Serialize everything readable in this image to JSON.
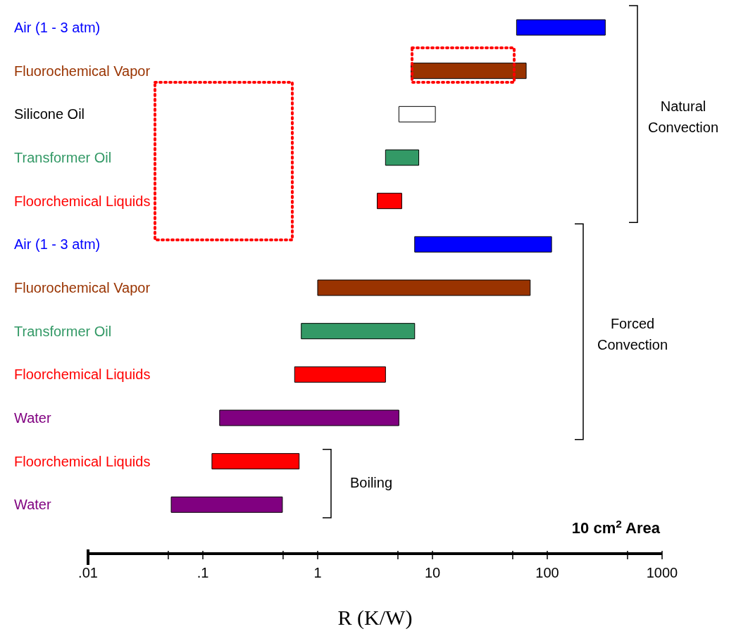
{
  "chart_data": {
    "type": "bar",
    "orientation": "horizontal",
    "xlabel": "R (K/W)",
    "categories": [
      "Air (1 - 3 atm)",
      "Fluorochemical Vapor",
      "Silicone Oil",
      "Transformer Oil",
      "Floorchemical Liquids",
      "Air (1 - 3 atm)",
      "Fluorochemical Vapor",
      "Transformer Oil",
      "Floorchemical Liquids",
      "Water",
      "Floorchemical Liquids",
      "Water"
    ],
    "base": [
      54,
      6.5,
      5.1,
      3.9,
      3.3,
      7,
      1,
      0.72,
      0.63,
      0.14,
      0.12,
      0.053
    ],
    "values": [
      266,
      59,
      5.5,
      3.7,
      2.1,
      102,
      70,
      6.28,
      3.27,
      4.96,
      0.57,
      0.44
    ],
    "colors": [
      "#0000ff",
      "#993300",
      "#ffffff",
      "#339966",
      "#ff0000",
      "#0000ff",
      "#993300",
      "#339966",
      "#ff0000",
      "#800080",
      "#ff0000",
      "#800080"
    ],
    "log": "x",
    "xlim": [
      0.01,
      1000
    ],
    "xticks": [
      {
        "value": 0.01,
        "label": ".01"
      },
      {
        "value": 0.05,
        "label": null
      },
      {
        "value": 0.1,
        "label": ".1"
      },
      {
        "value": 0.5,
        "label": null
      },
      1,
      {
        "value": 5,
        "label": null
      },
      10,
      {
        "value": 50,
        "label": null
      },
      100,
      {
        "value": 500,
        "label": null
      },
      1000
    ],
    "annotations": [
      "Natural Convection",
      "Forced Convection",
      "Boiling",
      "10 cm$^{2}$ Area"
    ]
  }
}
